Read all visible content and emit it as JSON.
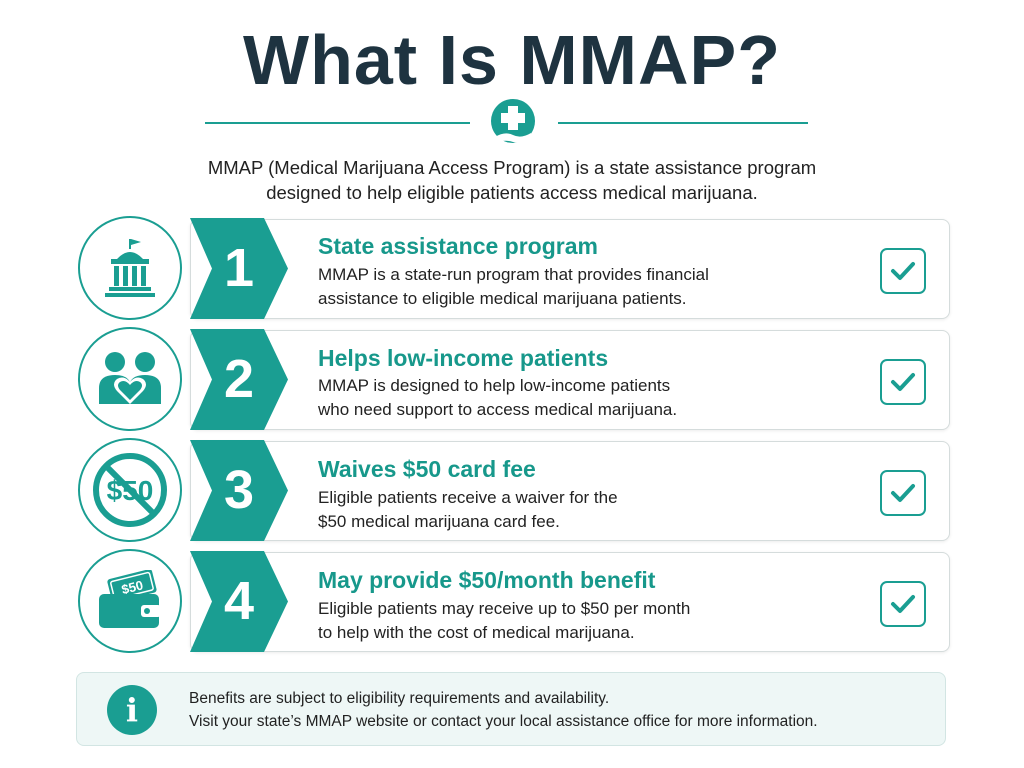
{
  "title": "What Is MMAP?",
  "intro": {
    "line1": "MMAP (Medical Marijuana Access Program) is a state assistance program",
    "line2": "designed to help eligible patients access medical marijuana."
  },
  "items": [
    {
      "number": "1",
      "title": "State assistance program",
      "desc1": "MMAP is a state-run program that provides financial",
      "desc2": "assistance to eligible medical marijuana patients.",
      "icon": "capitol-building-icon"
    },
    {
      "number": "2",
      "title": "Helps low-income patients",
      "desc1": "MMAP is designed to help low-income patients",
      "desc2": "who need support to access medical marijuana.",
      "icon": "people-heart-icon"
    },
    {
      "number": "3",
      "title": "Waives $50 card fee",
      "desc1": "Eligible patients receive a waiver for the",
      "desc2": "$50 medical marijuana card fee.",
      "icon": "no-fee-icon",
      "icon_text": "$50"
    },
    {
      "number": "4",
      "title": "May provide $50/month benefit",
      "desc1": "Eligible patients may receive up to $50 per month",
      "desc2": "to help with the cost of medical marijuana.",
      "icon": "wallet-cash-icon",
      "icon_text": "$50"
    }
  ],
  "note": {
    "icon_text": "i",
    "line1": "Benefits are subject to eligibility requirements and availability.",
    "line2": "Visit your state’s MMAP website or contact your local assistance office for more information."
  },
  "colors": {
    "accent": "#1a9e92",
    "title": "#1e3340",
    "note_bg": "#eef7f6"
  }
}
